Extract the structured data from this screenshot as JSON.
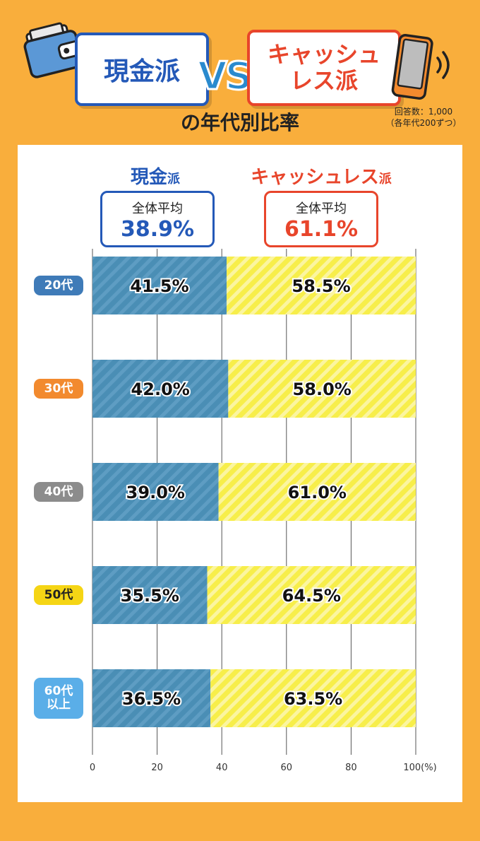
{
  "header": {
    "cash_title": "現金派",
    "vs": "VS",
    "cashless_title_line1": "キャッシュ",
    "cashless_title_line2": "レス派",
    "subtitle": "の年代別比率",
    "note_line1": "回答数：1,000",
    "note_line2": "（各年代200ずつ）"
  },
  "legend": {
    "cash": {
      "label_main": "現金",
      "label_suffix": "派",
      "avg_label": "全体平均",
      "avg_value": "38.9%",
      "color": "#2459B8"
    },
    "cashless": {
      "label_main": "キャッシュレス",
      "label_suffix": "派",
      "avg_label": "全体平均",
      "avg_value": "61.1%",
      "color": "#E8452B"
    }
  },
  "icons": {
    "wallet": "wallet-icon",
    "phone": "smartphone-icon"
  },
  "chart_data": {
    "type": "bar",
    "orientation": "horizontal",
    "stacked": true,
    "categories": [
      "20代",
      "30代",
      "40代",
      "50代",
      "60代以上"
    ],
    "category_colors": [
      "#3F7BB8",
      "#F28A2E",
      "#8C8C8C",
      "#F5D515",
      "#5AAEE8"
    ],
    "series": [
      {
        "name": "現金派",
        "values": [
          41.5,
          42.0,
          39.0,
          35.5,
          36.5
        ],
        "labels": [
          "41.5%",
          "42.0%",
          "39.0%",
          "35.5%",
          "36.5%"
        ],
        "color": "#4A8EB5"
      },
      {
        "name": "キャッシュレス派",
        "values": [
          58.5,
          58.0,
          61.0,
          64.5,
          63.5
        ],
        "labels": [
          "58.5%",
          "58.0%",
          "61.0%",
          "64.5%",
          "63.5%"
        ],
        "color": "#F7EE4A"
      }
    ],
    "xlim": [
      0,
      100
    ],
    "xticks": [
      0,
      20,
      40,
      60,
      80,
      100
    ],
    "xtick_labels": [
      "0",
      "20",
      "40",
      "60",
      "80",
      "100"
    ],
    "x_unit": "(%)",
    "grid": true
  }
}
